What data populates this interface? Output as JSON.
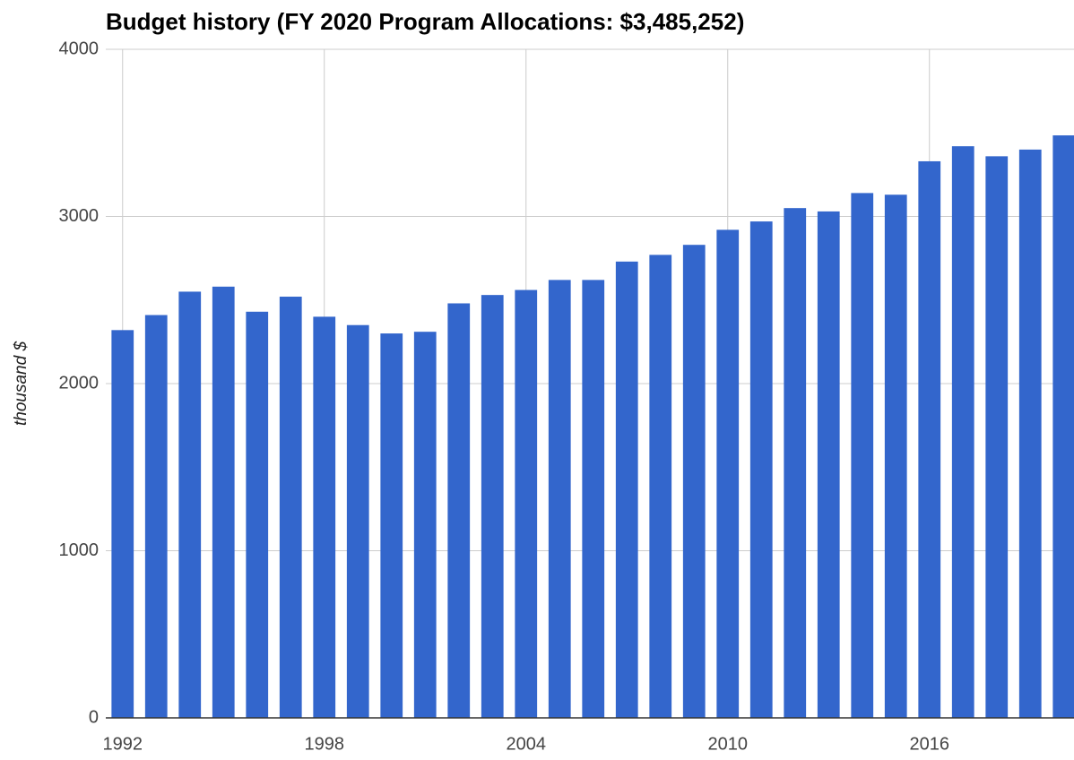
{
  "chart_data": {
    "type": "bar",
    "title": "Budget history (FY 2020 Program Allocations: $3,485,252)",
    "y_label": "thousand $",
    "x": [
      1992,
      1993,
      1994,
      1995,
      1996,
      1997,
      1998,
      1999,
      2000,
      2001,
      2002,
      2003,
      2004,
      2005,
      2006,
      2007,
      2008,
      2009,
      2010,
      2011,
      2012,
      2013,
      2014,
      2015,
      2016,
      2017,
      2018,
      2019,
      2020
    ],
    "values": [
      2320,
      2410,
      2550,
      2580,
      2430,
      2520,
      2400,
      2350,
      2300,
      2310,
      2480,
      2530,
      2560,
      2620,
      2620,
      2730,
      2770,
      2830,
      2920,
      2970,
      3050,
      3030,
      3140,
      3130,
      3330,
      3420,
      3360,
      3400,
      3485
    ],
    "color": "#3366cc",
    "xlim": [
      1991.5,
      2020.3
    ],
    "xticks": [
      1992,
      1998,
      2004,
      2010,
      2016
    ],
    "ylim": [
      0,
      4000
    ],
    "yticks": [
      0,
      1000,
      2000,
      3000,
      4000
    ],
    "grid": true
  }
}
